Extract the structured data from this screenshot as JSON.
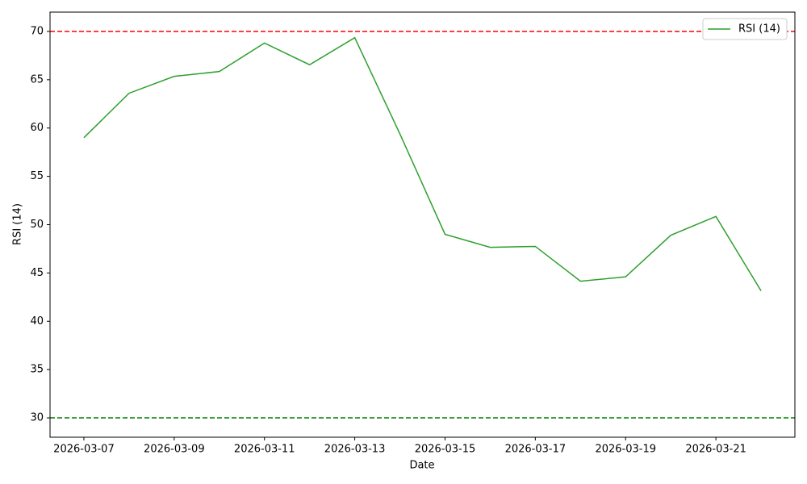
{
  "chart_data": {
    "type": "line",
    "x": [
      "2026-03-07",
      "2026-03-08",
      "2026-03-09",
      "2026-03-10",
      "2026-03-11",
      "2026-03-12",
      "2026-03-13",
      "2026-03-14",
      "2026-03-15",
      "2026-03-16",
      "2026-03-17",
      "2026-03-18",
      "2026-03-19",
      "2026-03-20",
      "2026-03-21",
      "2026-03-22"
    ],
    "series": [
      {
        "name": "RSI (14)",
        "color": "#2ca02c",
        "values": [
          59.0,
          63.6,
          65.35,
          65.85,
          68.8,
          66.55,
          69.35,
          59.4,
          49.0,
          47.65,
          47.75,
          44.15,
          44.6,
          48.9,
          50.85,
          43.15
        ]
      }
    ],
    "hlines": [
      {
        "value": 70,
        "color": "red"
      },
      {
        "value": 30,
        "color": "green"
      }
    ],
    "xlabel": "Date",
    "ylabel": "RSI (14)",
    "xlim": [
      "2026-03-06T06:00",
      "2026-03-22T18:00"
    ],
    "xticks": [
      "2026-03-07",
      "2026-03-09",
      "2026-03-11",
      "2026-03-13",
      "2026-03-15",
      "2026-03-17",
      "2026-03-19",
      "2026-03-21"
    ],
    "ylim": [
      28,
      72
    ],
    "yticks": [
      30,
      35,
      40,
      45,
      50,
      55,
      60,
      65,
      70
    ],
    "legend": "upper right"
  }
}
